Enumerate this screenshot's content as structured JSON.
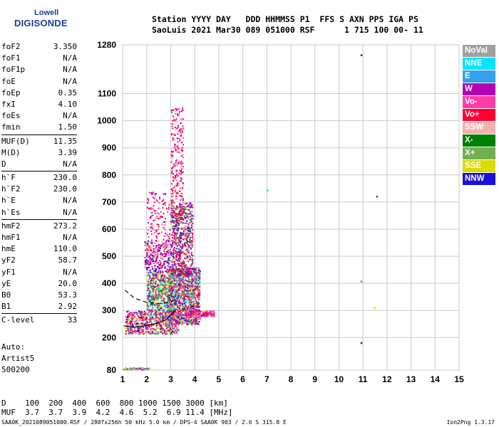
{
  "logo": {
    "line1": "Lowell",
    "line2": "DIGISONDE"
  },
  "header": {
    "line1": "Station YYYY DAY   DDD HHMMSS P1  FFS S AXN PPS IGA PS",
    "line2": "SaoLuis 2021 Mar30 089 051000 RSF      1 715 100 00- 11"
  },
  "params": [
    [
      {
        "k": "foF2",
        "v": "3.350"
      },
      {
        "k": "foF1",
        "v": "N/A"
      },
      {
        "k": "foF1p",
        "v": "N/A"
      },
      {
        "k": "foE",
        "v": "N/A"
      },
      {
        "k": "foEp",
        "v": "0.35"
      },
      {
        "k": "fxI",
        "v": "4.10"
      },
      {
        "k": "foEs",
        "v": "N/A"
      },
      {
        "k": "fmin",
        "v": "1.50"
      }
    ],
    [
      {
        "k": "MUF(D)",
        "v": "11.35"
      },
      {
        "k": "M(D)",
        "v": "3.39"
      },
      {
        "k": "D",
        "v": "N/A"
      }
    ],
    [
      {
        "k": "h`F",
        "v": "230.0"
      },
      {
        "k": "h`F2",
        "v": "230.0"
      },
      {
        "k": "h`E",
        "v": "N/A"
      },
      {
        "k": "h`Es",
        "v": "N/A"
      }
    ],
    [
      {
        "k": "hmF2",
        "v": "273.2"
      },
      {
        "k": "hmF1",
        "v": "N/A"
      },
      {
        "k": "hmE",
        "v": "110.0"
      },
      {
        "k": "yF2",
        "v": "58.7"
      },
      {
        "k": "yF1",
        "v": "N/A"
      },
      {
        "k": "yE",
        "v": "20.0"
      },
      {
        "k": "B0",
        "v": "53.3"
      },
      {
        "k": "B1",
        "v": "2.92"
      }
    ],
    [
      {
        "k": "C-level",
        "v": "33"
      }
    ]
  ],
  "auto": {
    "line1": "Auto:",
    "line2": "Artist5",
    "line3": "500200"
  },
  "footer": {
    "d_line": "D    100  200  400  600  800 1000 1500 3000 [km]",
    "muf_line": "MUF  3.7  3.7  3.9  4.2  4.6  5.2  6.9 11.4 [MHz]"
  },
  "footnote": "SAA0K_2021089051000.RSF / 280fx256h 50 kHz 5.0 km / DPS-4 SAA0K 903 / 2.6 S 315.8 E",
  "version": "Ion2Png 1.3.17",
  "legend": [
    {
      "label": "NoVal",
      "color": "#a0a0a0"
    },
    {
      "label": "NNE",
      "color": "#00e5ff"
    },
    {
      "label": "E",
      "color": "#33a0f0"
    },
    {
      "label": "W",
      "color": "#b400b4"
    },
    {
      "label": "Vo-",
      "color": "#ff3caa"
    },
    {
      "label": "Vo+",
      "color": "#ff0033"
    },
    {
      "label": "SSW",
      "color": "#f4b0b0"
    },
    {
      "label": "X-",
      "color": "#007f00"
    },
    {
      "label": "X+",
      "color": "#70b050"
    },
    {
      "label": "SSE",
      "color": "#dada00"
    },
    {
      "label": "NNW",
      "color": "#1a10dc"
    }
  ],
  "chart_data": {
    "type": "scatter",
    "xlim": [
      1,
      15
    ],
    "ylim": [
      80,
      1280
    ],
    "xticks": [
      "1",
      "2",
      "3",
      "4",
      "5",
      "6",
      "7",
      "8",
      "9",
      "10",
      "11",
      "12",
      "13",
      "14",
      "15"
    ],
    "yticks": [
      "80",
      "200",
      "300",
      "400",
      "500",
      "600",
      "700",
      "800",
      "900",
      "1000",
      "1100",
      "1280"
    ],
    "grid": true,
    "trace_curve": [
      [
        1.05,
        243
      ],
      [
        1.5,
        238
      ],
      [
        2.0,
        244
      ],
      [
        2.5,
        255
      ],
      [
        2.8,
        266
      ],
      [
        3.0,
        283
      ],
      [
        3.2,
        300
      ]
    ],
    "dashed_curve": [
      [
        1.1,
        375
      ],
      [
        1.5,
        345
      ],
      [
        2.0,
        330
      ],
      [
        2.5,
        326
      ],
      [
        3.0,
        330
      ],
      [
        3.2,
        340
      ]
    ],
    "isolated_points": [
      {
        "x": 10.9,
        "y": 1245,
        "color": "#1a10dc"
      },
      {
        "x": 7.0,
        "y": 746,
        "color": "#00e5ff"
      },
      {
        "x": 11.55,
        "y": 723,
        "color": "#b400b4"
      },
      {
        "x": 10.9,
        "y": 410,
        "color": "#33a0f0"
      },
      {
        "x": 11.45,
        "y": 313,
        "color": "#dada00"
      },
      {
        "x": 10.9,
        "y": 183,
        "color": "#1a10dc"
      }
    ]
  }
}
